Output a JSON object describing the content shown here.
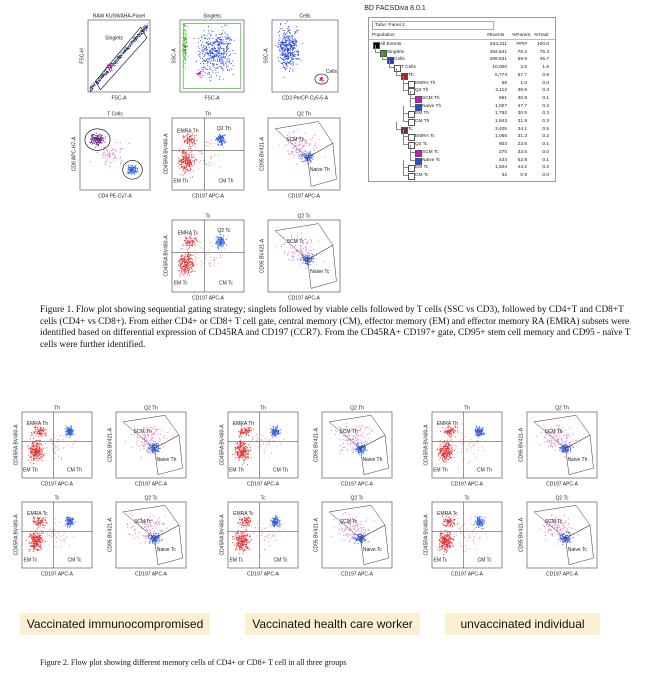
{
  "header": "BD FACSDiva 8.0.1",
  "hierarchy": {
    "tube": "Tube: Panel 2",
    "columns": [
      "Population",
      "#Events",
      "%Parent",
      "%Total"
    ],
    "rows": [
      {
        "name": "All Events",
        "events": "634,211",
        "parent": "####",
        "total": "100.0",
        "color": "#000000"
      },
      {
        "name": "Singlets",
        "events": "483,641",
        "parent": "76.3",
        "total": "76.3",
        "color": "#3a9a2a"
      },
      {
        "name": "Cells",
        "events": "289,831",
        "parent": "59.9",
        "total": "45.7",
        "color": "#1f3fd0"
      },
      {
        "name": "T Cells",
        "events": "10,000",
        "parent": "3.5",
        "total": "1.6",
        "color": "#ffffff"
      },
      {
        "name": "Th",
        "events": "5,773",
        "parent": "57.7",
        "total": "0.9",
        "color": "#d01010"
      },
      {
        "name": "EMRA Th",
        "events": "56",
        "parent": "1.0",
        "total": "0.0",
        "color": "#ffffff"
      },
      {
        "name": "Q2 Th",
        "events": "2,112",
        "parent": "36.6",
        "total": "0.3",
        "color": "#ffffff"
      },
      {
        "name": "SCM Th",
        "events": "651",
        "parent": "30.8",
        "total": "0.1",
        "color": "#e010c0"
      },
      {
        "name": "Naive Th",
        "events": "1,007",
        "parent": "47.7",
        "total": "0.2",
        "color": "#2050e0"
      },
      {
        "name": "EM Th",
        "events": "1,762",
        "parent": "30.5",
        "total": "0.3",
        "color": "#ffffff"
      },
      {
        "name": "CM Th",
        "events": "1,843",
        "parent": "31.9",
        "total": "0.3",
        "color": "#ffffff"
      },
      {
        "name": "Tc",
        "events": "3,405",
        "parent": "34.1",
        "total": "0.5",
        "color": "#8a2050"
      },
      {
        "name": "EMRA Tc",
        "events": "1,066",
        "parent": "31.3",
        "total": "0.2",
        "color": "#ffffff"
      },
      {
        "name": "Q2 Tc",
        "events": "803",
        "parent": "23.6",
        "total": "0.1",
        "color": "#ffffff"
      },
      {
        "name": "SCM Tc",
        "events": "270",
        "parent": "33.6",
        "total": "0.0",
        "color": "#e010c0"
      },
      {
        "name": "Naive Tc",
        "events": "424",
        "parent": "52.8",
        "total": "0.1",
        "color": "#2050e0"
      },
      {
        "name": "EM Tc",
        "events": "1,504",
        "parent": "44.2",
        "total": "0.2",
        "color": "#ffffff"
      },
      {
        "name": "CM Tc",
        "events": "32",
        "parent": "0.9",
        "total": "0.0",
        "color": "#ffffff"
      }
    ]
  },
  "figure1": {
    "plots": [
      {
        "title": "RAW KUSWAHA-Panel",
        "y_label": "FSC-H",
        "x_label": "FSC-A",
        "gates": [
          "Singlets"
        ]
      },
      {
        "title": "Singlets",
        "y_label": "SSC-A",
        "x_label": "FSC-A",
        "gates": []
      },
      {
        "title": "Cells",
        "y_label": "SSC-A",
        "x_label": "CD3 PerCP-Cy5-5-A",
        "gates": [
          "Cells"
        ]
      },
      {
        "title": "T Cells",
        "y_label": "CD8 APC-H7-A",
        "x_label": "CD4 PE-Cy7-A",
        "gates": []
      },
      {
        "title": "Th",
        "y_label": "CD45RA BV480-A",
        "x_label": "CD197 APC-A",
        "gates": [
          "EMRA Th",
          "Q2 Th",
          "EM Th",
          "CM Th"
        ]
      },
      {
        "title": "Q2 Th",
        "y_label": "CD95 BV421-A",
        "x_label": "CD197 APC-A",
        "gates": [
          "SCM Th",
          "Naive Th"
        ]
      },
      {
        "title": "Tc",
        "y_label": "CD45RA BV480-A",
        "x_label": "CD197 APC-A",
        "gates": [
          "EMRA Tc",
          "Q2 Tc",
          "EM Tc",
          "CM Tc"
        ]
      },
      {
        "title": "Q2 Tc",
        "y_label": "CD95 BV421-A",
        "x_label": "CD197 APC-A",
        "gates": [
          "SCM Tc",
          "Naive Tc"
        ]
      }
    ],
    "caption": "Figure 1. Flow plot showing sequential gating strategy; singlets followed by viable cells followed by T cells (SSC vs CD3), followed by CD4+T and CD8+T cells (CD4+ vs CD8+). From either CD4+ or CD8+ T cell gate, central memory (CM), effector memory (EM) and effector memory RA (EMRA) subsets were identified based on differential expression of CD45RA and CD197 (CCR7). From the CD45RA+ CD197+ gate, CD95+ stem cell memory and CD95 - naïve T cells were further identified."
  },
  "figure2": {
    "groups": [
      {
        "label": "Vaccinated immunocompromised",
        "plots": [
          {
            "title": "Th",
            "y_label": "CD45RA BV480-A",
            "x_label": "CD197 APC-A",
            "gates": [
              "EMRA Th",
              "EM Th",
              "CM Th"
            ]
          },
          {
            "title": "Q2 Th",
            "y_label": "CD95 BV421-A",
            "x_label": "CD197 APC-A",
            "gates": [
              "SCM Th",
              "Naive Th"
            ]
          },
          {
            "title": "Tc",
            "y_label": "CD45RA BV480-A",
            "x_label": "CD197 APC-A",
            "gates": [
              "EMRA Tc",
              "EM Tc",
              "CM Tc"
            ]
          },
          {
            "title": "Q2 Tc",
            "y_label": "CD95 BV421-A",
            "x_label": "CD197 APC-A",
            "gates": [
              "SCM Tc",
              "Naive Tc"
            ]
          }
        ]
      },
      {
        "label": "Vaccinated health care worker",
        "plots": [
          {
            "title": "Th",
            "y_label": "CD45RA BV480-A",
            "x_label": "CD197 APC-A",
            "gates": [
              "EMRA Th",
              "EM Th",
              "CM Th"
            ]
          },
          {
            "title": "Q2 Th",
            "y_label": "CD95 BV421-A",
            "x_label": "CD197 APC-A",
            "gates": [
              "SCM Th",
              "Naive Th"
            ]
          },
          {
            "title": "Tc",
            "y_label": "CD45RA BV480-A",
            "x_label": "CD197 APC-A",
            "gates": [
              "EMRA Tc",
              "EM Tc",
              "CM Tc"
            ]
          },
          {
            "title": "Q2 Tc",
            "y_label": "CD95 BV421-A",
            "x_label": "CD197 APC-A",
            "gates": [
              "SCM Tc",
              "Naive Tc"
            ]
          }
        ]
      },
      {
        "label": "unvaccinated individual",
        "plots": [
          {
            "title": "Th",
            "y_label": "CD45RA BV480-A",
            "x_label": "CD197 APC-A",
            "gates": [
              "EMRA Th",
              "EM Th",
              "CM Th"
            ]
          },
          {
            "title": "Q2 Th",
            "y_label": "CD95 BV421-A",
            "x_label": "CD197 APC-A",
            "gates": [
              "SCM Th",
              "Naive Th"
            ]
          },
          {
            "title": "Tc",
            "y_label": "CD45RA BV480-A",
            "x_label": "CD197 APC-A",
            "gates": [
              "EMRA Tc",
              "EM Tc",
              "CM Tc"
            ]
          },
          {
            "title": "Q2 Tc",
            "y_label": "CD95 BV421-A",
            "x_label": "CD197 APC-A",
            "gates": [
              "SCM Tc",
              "Naive Tc"
            ]
          }
        ]
      }
    ],
    "caption": "Figure 2. Flow plot showing different memory cells of CD4+ or CD8+ T cell in all three groups"
  }
}
